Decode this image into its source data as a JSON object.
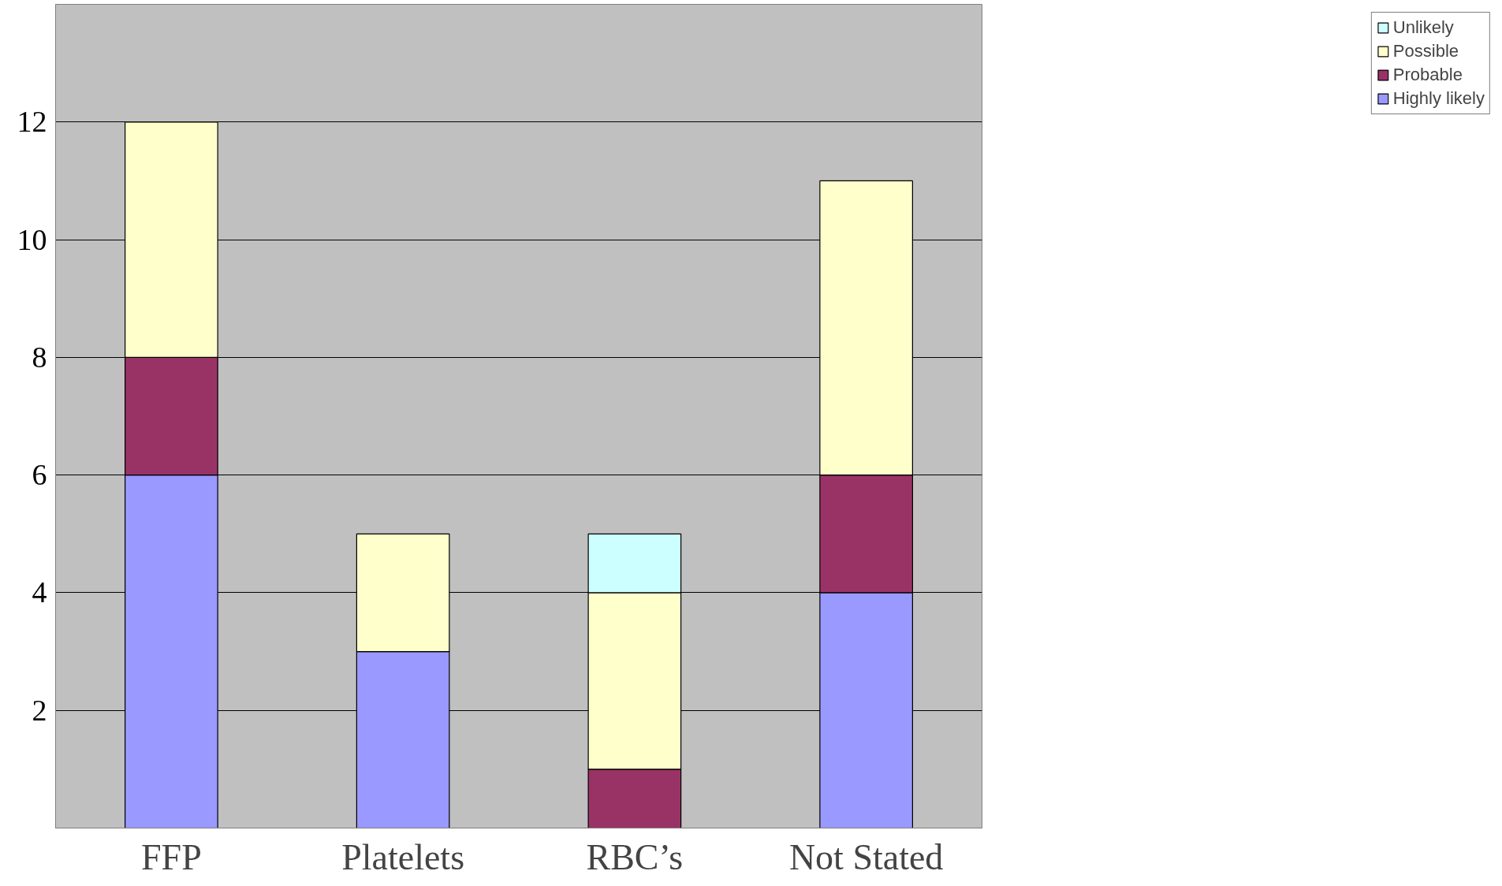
{
  "chart_data": {
    "type": "bar",
    "stacked": true,
    "categories": [
      "FFP",
      "Platelets",
      "RBC’s",
      "Not Stated"
    ],
    "series": [
      {
        "name": "Highly likely",
        "color": "#9999ff",
        "values": [
          6,
          3,
          null,
          4
        ]
      },
      {
        "name": "Probable",
        "color": "#993366",
        "values": [
          2,
          null,
          1,
          2
        ]
      },
      {
        "name": "Possible",
        "color": "#ffffcc",
        "values": [
          4,
          2,
          3,
          5
        ]
      },
      {
        "name": "Unlikely",
        "color": "#ccffff",
        "values": [
          null,
          null,
          1,
          null
        ]
      }
    ],
    "ylim": [
      0,
      14
    ],
    "yticks": [
      2,
      4,
      6,
      8,
      10,
      12
    ],
    "grid": "y",
    "legend": "right"
  }
}
